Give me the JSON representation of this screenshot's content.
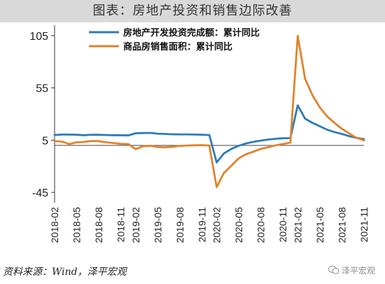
{
  "title": "图表：房地产投资和销售边际改善",
  "source": "资料来源：Wind，泽平宏观",
  "watermark": "泽平宏观",
  "chart_data": {
    "type": "line",
    "x": [
      "2018-02",
      "2018-03",
      "2018-04",
      "2018-05",
      "2018-06",
      "2018-07",
      "2018-08",
      "2018-09",
      "2018-10",
      "2018-11",
      "2018-12",
      "2019-02",
      "2019-03",
      "2019-04",
      "2019-05",
      "2019-06",
      "2019-07",
      "2019-08",
      "2019-09",
      "2019-10",
      "2019-11",
      "2019-12",
      "2020-02",
      "2020-03",
      "2020-04",
      "2020-05",
      "2020-06",
      "2020-07",
      "2020-08",
      "2020-09",
      "2020-10",
      "2020-11",
      "2020-12",
      "2021-02",
      "2021-03",
      "2021-04",
      "2021-05",
      "2021-06",
      "2021-07",
      "2021-08",
      "2021-09",
      "2021-10",
      "2021-11"
    ],
    "xticks": [
      "2018-02",
      "2018-05",
      "2018-08",
      "2018-11",
      "2019-02",
      "2019-05",
      "2019-08",
      "2019-11",
      "2020-02",
      "2020-05",
      "2020-08",
      "2020-11",
      "2021-02",
      "2021-05",
      "2021-08",
      "2021-11"
    ],
    "yticks": [
      105,
      55,
      5,
      -45
    ],
    "ylim": [
      -55,
      115
    ],
    "grid": false,
    "legend_position": "top",
    "series": [
      {
        "name": "房地产开发投资完成额：累计同比",
        "color": "#2b7bba",
        "values": [
          9.9,
          10.4,
          10.3,
          10.2,
          9.7,
          10.2,
          10.1,
          9.9,
          9.7,
          9.7,
          9.5,
          11.6,
          11.8,
          11.9,
          11.2,
          10.9,
          10.6,
          10.5,
          10.5,
          10.3,
          10.2,
          9.9,
          -16.3,
          -7.7,
          -3.3,
          -0.3,
          1.9,
          3.4,
          4.6,
          5.6,
          6.3,
          6.8,
          7.0,
          38.3,
          25.6,
          21.6,
          18.3,
          15.0,
          12.7,
          10.9,
          8.8,
          7.2,
          6.0
        ]
      },
      {
        "name": "商品房销售面积：累计同比",
        "color": "#e0832b",
        "values": [
          4.1,
          3.6,
          1.3,
          2.9,
          3.3,
          4.2,
          4.0,
          2.9,
          2.2,
          1.4,
          1.3,
          -3.6,
          -0.9,
          -0.3,
          -1.6,
          -1.8,
          -1.3,
          -0.6,
          -0.1,
          0.1,
          0.2,
          -0.1,
          -39.9,
          -26.3,
          -19.3,
          -12.3,
          -8.4,
          -6.0,
          -3.3,
          -1.8,
          0.0,
          1.3,
          2.6,
          104.9,
          63.8,
          48.1,
          36.3,
          27.7,
          21.5,
          15.9,
          11.3,
          7.2,
          4.8
        ]
      }
    ]
  }
}
